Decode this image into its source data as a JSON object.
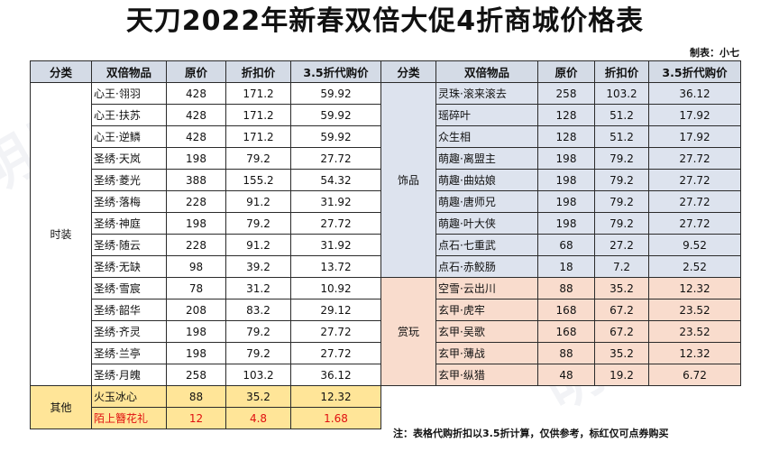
{
  "title": "天刀2022年新春双倍大促4折商城价格表",
  "maker": "制表：小七",
  "headers": [
    "分类",
    "双倍物品",
    "原价",
    "折扣价",
    "3.5折代购价"
  ],
  "left": [
    {
      "category": "时装",
      "rows": [
        {
          "item": "心王·翎羽",
          "price": "428",
          "discount": "171.2",
          "proxy": "59.92"
        },
        {
          "item": "心王·扶苏",
          "price": "428",
          "discount": "171.2",
          "proxy": "59.92"
        },
        {
          "item": "心王·逆鳞",
          "price": "428",
          "discount": "171.2",
          "proxy": "59.92"
        },
        {
          "item": "圣绣·天岚",
          "price": "198",
          "discount": "79.2",
          "proxy": "27.72"
        },
        {
          "item": "圣绣·菱光",
          "price": "388",
          "discount": "155.2",
          "proxy": "54.32"
        },
        {
          "item": "圣绣·落梅",
          "price": "228",
          "discount": "91.2",
          "proxy": "31.92"
        },
        {
          "item": "圣绣·神庭",
          "price": "198",
          "discount": "79.2",
          "proxy": "27.72"
        },
        {
          "item": "圣绣·随云",
          "price": "228",
          "discount": "91.2",
          "proxy": "31.92"
        },
        {
          "item": "圣绣·无缺",
          "price": "98",
          "discount": "39.2",
          "proxy": "13.72"
        },
        {
          "item": "圣绣·雪宸",
          "price": "78",
          "discount": "31.2",
          "proxy": "10.92"
        },
        {
          "item": "圣绣·韶华",
          "price": "208",
          "discount": "83.2",
          "proxy": "29.12"
        },
        {
          "item": "圣绣·齐灵",
          "price": "198",
          "discount": "79.2",
          "proxy": "27.72"
        },
        {
          "item": "圣绣·兰亭",
          "price": "198",
          "discount": "79.2",
          "proxy": "27.72"
        },
        {
          "item": "圣绣·月魄",
          "price": "258",
          "discount": "103.2",
          "proxy": "36.12"
        }
      ]
    },
    {
      "category": "其他",
      "rows": [
        {
          "item": "火玉冰心",
          "price": "88",
          "discount": "35.2",
          "proxy": "12.32"
        },
        {
          "item": "陌上簪花礼",
          "price": "12",
          "discount": "4.8",
          "proxy": "1.68"
        }
      ]
    }
  ],
  "right": [
    {
      "category": "饰品",
      "rows": [
        {
          "item": "灵珠·滚来滚去",
          "price": "258",
          "discount": "103.2",
          "proxy": "36.12"
        },
        {
          "item": "瑶碎叶",
          "price": "128",
          "discount": "51.2",
          "proxy": "17.92"
        },
        {
          "item": "众生相",
          "price": "128",
          "discount": "51.2",
          "proxy": "17.92"
        },
        {
          "item": "萌趣·离盟主",
          "price": "198",
          "discount": "79.2",
          "proxy": "27.72"
        },
        {
          "item": "萌趣·曲姑娘",
          "price": "198",
          "discount": "79.2",
          "proxy": "27.72"
        },
        {
          "item": "萌趣·唐师兄",
          "price": "198",
          "discount": "79.2",
          "proxy": "27.72"
        },
        {
          "item": "萌趣·叶大侠",
          "price": "198",
          "discount": "79.2",
          "proxy": "27.72"
        },
        {
          "item": "点石·七重武",
          "price": "68",
          "discount": "27.2",
          "proxy": "9.52"
        },
        {
          "item": "点石·赤鲛肠",
          "price": "18",
          "discount": "7.2",
          "proxy": "2.52"
        }
      ]
    },
    {
      "category": "赏玩",
      "rows": [
        {
          "item": "空雪·云出川",
          "price": "88",
          "discount": "35.2",
          "proxy": "12.32"
        },
        {
          "item": "玄甲·虎牢",
          "price": "168",
          "discount": "67.2",
          "proxy": "23.52"
        },
        {
          "item": "玄甲·吴歌",
          "price": "168",
          "discount": "67.2",
          "proxy": "23.52"
        },
        {
          "item": "玄甲·薄战",
          "price": "88",
          "discount": "35.2",
          "proxy": "12.32"
        },
        {
          "item": "玄甲·纵猎",
          "price": "48",
          "discount": "19.2",
          "proxy": "6.72"
        }
      ]
    }
  ],
  "note": "注：表格代购折扣以3.5折计算，仅供参考，标红仅可点券购买",
  "colors": {
    "header_bg": "#d4dbe6",
    "accessory_bg": "#dde3ee",
    "collectible_bg": "#f9dccd",
    "other_bg": "#ffe598",
    "red_text": "#e01010"
  }
}
